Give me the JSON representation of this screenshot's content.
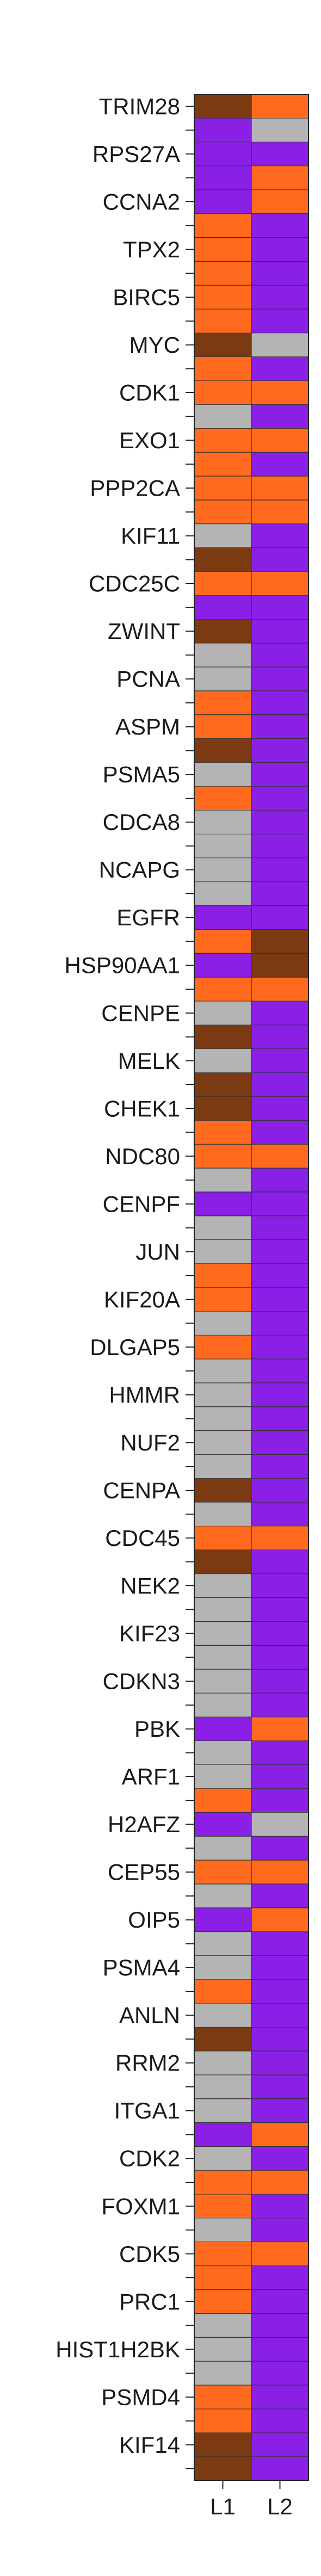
{
  "chart_data": {
    "type": "heatmap",
    "columns": [
      "L1",
      "L2"
    ],
    "colors": {
      "brown": "#7b3a12",
      "orange": "#ff6a1f",
      "purple": "#8a1fe6",
      "gray": "#b4b4b4"
    },
    "rows": [
      {
        "label": "TRIM28",
        "cells": [
          "brown",
          "orange"
        ]
      },
      {
        "label": "",
        "cells": [
          "purple",
          "gray"
        ]
      },
      {
        "label": "RPS27A",
        "cells": [
          "purple",
          "purple"
        ]
      },
      {
        "label": "",
        "cells": [
          "purple",
          "orange"
        ]
      },
      {
        "label": "CCNA2",
        "cells": [
          "purple",
          "orange"
        ]
      },
      {
        "label": "",
        "cells": [
          "orange",
          "purple"
        ]
      },
      {
        "label": "TPX2",
        "cells": [
          "orange",
          "purple"
        ]
      },
      {
        "label": "",
        "cells": [
          "orange",
          "purple"
        ]
      },
      {
        "label": "BIRC5",
        "cells": [
          "orange",
          "purple"
        ]
      },
      {
        "label": "",
        "cells": [
          "orange",
          "purple"
        ]
      },
      {
        "label": "MYC",
        "cells": [
          "brown",
          "gray"
        ]
      },
      {
        "label": "",
        "cells": [
          "orange",
          "purple"
        ]
      },
      {
        "label": "CDK1",
        "cells": [
          "orange",
          "orange"
        ]
      },
      {
        "label": "",
        "cells": [
          "gray",
          "purple"
        ]
      },
      {
        "label": "EXO1",
        "cells": [
          "orange",
          "orange"
        ]
      },
      {
        "label": "",
        "cells": [
          "orange",
          "purple"
        ]
      },
      {
        "label": "PPP2CA",
        "cells": [
          "orange",
          "orange"
        ]
      },
      {
        "label": "",
        "cells": [
          "orange",
          "orange"
        ]
      },
      {
        "label": "KIF11",
        "cells": [
          "gray",
          "purple"
        ]
      },
      {
        "label": "",
        "cells": [
          "brown",
          "purple"
        ]
      },
      {
        "label": "CDC25C",
        "cells": [
          "orange",
          "orange"
        ]
      },
      {
        "label": "",
        "cells": [
          "purple",
          "purple"
        ]
      },
      {
        "label": "ZWINT",
        "cells": [
          "brown",
          "purple"
        ]
      },
      {
        "label": "",
        "cells": [
          "gray",
          "purple"
        ]
      },
      {
        "label": "PCNA",
        "cells": [
          "gray",
          "purple"
        ]
      },
      {
        "label": "",
        "cells": [
          "orange",
          "purple"
        ]
      },
      {
        "label": "ASPM",
        "cells": [
          "orange",
          "purple"
        ]
      },
      {
        "label": "",
        "cells": [
          "brown",
          "purple"
        ]
      },
      {
        "label": "PSMA5",
        "cells": [
          "gray",
          "purple"
        ]
      },
      {
        "label": "",
        "cells": [
          "orange",
          "purple"
        ]
      },
      {
        "label": "CDCA8",
        "cells": [
          "gray",
          "purple"
        ]
      },
      {
        "label": "",
        "cells": [
          "gray",
          "purple"
        ]
      },
      {
        "label": "NCAPG",
        "cells": [
          "gray",
          "purple"
        ]
      },
      {
        "label": "",
        "cells": [
          "gray",
          "purple"
        ]
      },
      {
        "label": "EGFR",
        "cells": [
          "purple",
          "purple"
        ]
      },
      {
        "label": "",
        "cells": [
          "orange",
          "brown"
        ]
      },
      {
        "label": "HSP90AA1",
        "cells": [
          "purple",
          "brown"
        ]
      },
      {
        "label": "",
        "cells": [
          "orange",
          "orange"
        ]
      },
      {
        "label": "CENPE",
        "cells": [
          "gray",
          "purple"
        ]
      },
      {
        "label": "",
        "cells": [
          "brown",
          "purple"
        ]
      },
      {
        "label": "MELK",
        "cells": [
          "gray",
          "purple"
        ]
      },
      {
        "label": "",
        "cells": [
          "brown",
          "purple"
        ]
      },
      {
        "label": "CHEK1",
        "cells": [
          "brown",
          "purple"
        ]
      },
      {
        "label": "",
        "cells": [
          "orange",
          "purple"
        ]
      },
      {
        "label": "NDC80",
        "cells": [
          "orange",
          "orange"
        ]
      },
      {
        "label": "",
        "cells": [
          "gray",
          "purple"
        ]
      },
      {
        "label": "CENPF",
        "cells": [
          "purple",
          "purple"
        ]
      },
      {
        "label": "",
        "cells": [
          "gray",
          "purple"
        ]
      },
      {
        "label": "JUN",
        "cells": [
          "gray",
          "purple"
        ]
      },
      {
        "label": "",
        "cells": [
          "orange",
          "purple"
        ]
      },
      {
        "label": "KIF20A",
        "cells": [
          "orange",
          "purple"
        ]
      },
      {
        "label": "",
        "cells": [
          "gray",
          "purple"
        ]
      },
      {
        "label": "DLGAP5",
        "cells": [
          "orange",
          "purple"
        ]
      },
      {
        "label": "",
        "cells": [
          "gray",
          "purple"
        ]
      },
      {
        "label": "HMMR",
        "cells": [
          "gray",
          "purple"
        ]
      },
      {
        "label": "",
        "cells": [
          "gray",
          "purple"
        ]
      },
      {
        "label": "NUF2",
        "cells": [
          "gray",
          "purple"
        ]
      },
      {
        "label": "",
        "cells": [
          "gray",
          "purple"
        ]
      },
      {
        "label": "CENPA",
        "cells": [
          "brown",
          "purple"
        ]
      },
      {
        "label": "",
        "cells": [
          "gray",
          "purple"
        ]
      },
      {
        "label": "CDC45",
        "cells": [
          "orange",
          "orange"
        ]
      },
      {
        "label": "",
        "cells": [
          "brown",
          "purple"
        ]
      },
      {
        "label": "NEK2",
        "cells": [
          "gray",
          "purple"
        ]
      },
      {
        "label": "",
        "cells": [
          "gray",
          "purple"
        ]
      },
      {
        "label": "KIF23",
        "cells": [
          "gray",
          "purple"
        ]
      },
      {
        "label": "",
        "cells": [
          "gray",
          "purple"
        ]
      },
      {
        "label": "CDKN3",
        "cells": [
          "gray",
          "purple"
        ]
      },
      {
        "label": "",
        "cells": [
          "gray",
          "purple"
        ]
      },
      {
        "label": "PBK",
        "cells": [
          "purple",
          "orange"
        ]
      },
      {
        "label": "",
        "cells": [
          "gray",
          "purple"
        ]
      },
      {
        "label": "ARF1",
        "cells": [
          "gray",
          "purple"
        ]
      },
      {
        "label": "",
        "cells": [
          "orange",
          "purple"
        ]
      },
      {
        "label": "H2AFZ",
        "cells": [
          "purple",
          "gray"
        ]
      },
      {
        "label": "",
        "cells": [
          "gray",
          "purple"
        ]
      },
      {
        "label": "CEP55",
        "cells": [
          "orange",
          "orange"
        ]
      },
      {
        "label": "",
        "cells": [
          "gray",
          "purple"
        ]
      },
      {
        "label": "OIP5",
        "cells": [
          "purple",
          "orange"
        ]
      },
      {
        "label": "",
        "cells": [
          "gray",
          "purple"
        ]
      },
      {
        "label": "PSMA4",
        "cells": [
          "gray",
          "purple"
        ]
      },
      {
        "label": "",
        "cells": [
          "orange",
          "purple"
        ]
      },
      {
        "label": "ANLN",
        "cells": [
          "gray",
          "purple"
        ]
      },
      {
        "label": "",
        "cells": [
          "brown",
          "purple"
        ]
      },
      {
        "label": "RRM2",
        "cells": [
          "gray",
          "purple"
        ]
      },
      {
        "label": "",
        "cells": [
          "gray",
          "purple"
        ]
      },
      {
        "label": "ITGA1",
        "cells": [
          "gray",
          "purple"
        ]
      },
      {
        "label": "",
        "cells": [
          "purple",
          "orange"
        ]
      },
      {
        "label": "CDK2",
        "cells": [
          "gray",
          "purple"
        ]
      },
      {
        "label": "",
        "cells": [
          "orange",
          "orange"
        ]
      },
      {
        "label": "FOXM1",
        "cells": [
          "orange",
          "purple"
        ]
      },
      {
        "label": "",
        "cells": [
          "gray",
          "purple"
        ]
      },
      {
        "label": "CDK5",
        "cells": [
          "orange",
          "orange"
        ]
      },
      {
        "label": "",
        "cells": [
          "orange",
          "purple"
        ]
      },
      {
        "label": "PRC1",
        "cells": [
          "orange",
          "purple"
        ]
      },
      {
        "label": "",
        "cells": [
          "gray",
          "purple"
        ]
      },
      {
        "label": "HIST1H2BK",
        "cells": [
          "gray",
          "purple"
        ]
      },
      {
        "label": "",
        "cells": [
          "gray",
          "purple"
        ]
      },
      {
        "label": "PSMD4",
        "cells": [
          "orange",
          "purple"
        ]
      },
      {
        "label": "",
        "cells": [
          "orange",
          "purple"
        ]
      },
      {
        "label": "KIF14",
        "cells": [
          "brown",
          "purple"
        ]
      },
      {
        "label": "",
        "cells": [
          "brown",
          "purple"
        ]
      }
    ]
  }
}
